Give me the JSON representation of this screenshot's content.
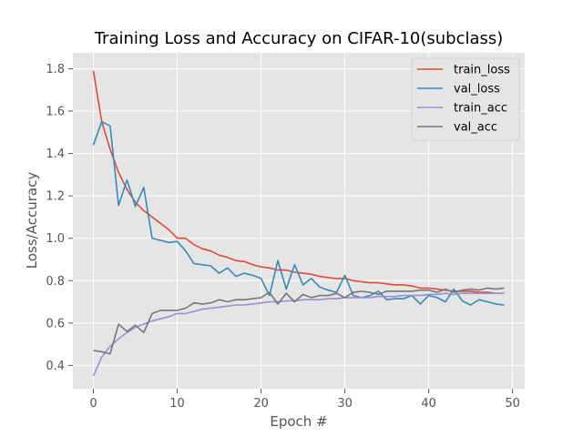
{
  "chart_data": {
    "type": "line",
    "title": "Training Loss and Accuracy on CIFAR-10(subclass)",
    "xlabel": "Epoch #",
    "ylabel": "Loss/Accuracy",
    "xlim": [
      -2.45,
      51.45
    ],
    "ylim": [
      0.29,
      1.875
    ],
    "xticks": [
      0,
      10,
      20,
      30,
      40,
      50
    ],
    "yticks": [
      0.4,
      0.6,
      0.8,
      1.0,
      1.2,
      1.4,
      1.6,
      1.8
    ],
    "grid": true,
    "legend_position": "top-right",
    "x": [
      0,
      1,
      2,
      3,
      4,
      5,
      6,
      7,
      8,
      9,
      10,
      11,
      12,
      13,
      14,
      15,
      16,
      17,
      18,
      19,
      20,
      21,
      22,
      23,
      24,
      25,
      26,
      27,
      28,
      29,
      30,
      31,
      32,
      33,
      34,
      35,
      36,
      37,
      38,
      39,
      40,
      41,
      42,
      43,
      44,
      45,
      46,
      47,
      48,
      49
    ],
    "series": [
      {
        "name": "train_loss",
        "color": "#e24a33",
        "values": [
          1.79,
          1.55,
          1.42,
          1.31,
          1.23,
          1.17,
          1.13,
          1.1,
          1.07,
          1.04,
          1.0,
          1.0,
          0.97,
          0.95,
          0.94,
          0.92,
          0.91,
          0.895,
          0.89,
          0.875,
          0.865,
          0.86,
          0.85,
          0.85,
          0.84,
          0.835,
          0.83,
          0.82,
          0.815,
          0.81,
          0.81,
          0.8,
          0.795,
          0.79,
          0.79,
          0.785,
          0.78,
          0.78,
          0.775,
          0.765,
          0.765,
          0.76,
          0.755,
          0.75,
          0.75,
          0.75,
          0.745,
          0.745,
          0.74,
          0.74
        ]
      },
      {
        "name": "val_loss",
        "color": "#348abd",
        "values": [
          1.44,
          1.55,
          1.53,
          1.155,
          1.275,
          1.15,
          1.24,
          1.0,
          0.99,
          0.98,
          0.985,
          0.94,
          0.88,
          0.875,
          0.87,
          0.835,
          0.86,
          0.82,
          0.835,
          0.825,
          0.81,
          0.73,
          0.895,
          0.76,
          0.875,
          0.78,
          0.81,
          0.77,
          0.755,
          0.745,
          0.825,
          0.73,
          0.72,
          0.73,
          0.75,
          0.71,
          0.715,
          0.715,
          0.73,
          0.69,
          0.73,
          0.72,
          0.7,
          0.76,
          0.705,
          0.685,
          0.71,
          0.7,
          0.69,
          0.685
        ]
      },
      {
        "name": "train_acc",
        "color": "#988ed5",
        "values": [
          0.35,
          0.44,
          0.49,
          0.525,
          0.555,
          0.58,
          0.595,
          0.61,
          0.62,
          0.63,
          0.645,
          0.645,
          0.655,
          0.665,
          0.67,
          0.675,
          0.68,
          0.685,
          0.685,
          0.69,
          0.695,
          0.7,
          0.7,
          0.705,
          0.705,
          0.71,
          0.71,
          0.71,
          0.715,
          0.715,
          0.72,
          0.72,
          0.72,
          0.72,
          0.725,
          0.725,
          0.725,
          0.73,
          0.73,
          0.73,
          0.735,
          0.735,
          0.74,
          0.735,
          0.74,
          0.74,
          0.74,
          0.74,
          0.74,
          0.74
        ]
      },
      {
        "name": "val_acc",
        "color": "#777777",
        "values": [
          0.47,
          0.465,
          0.455,
          0.595,
          0.56,
          0.59,
          0.555,
          0.645,
          0.66,
          0.66,
          0.66,
          0.67,
          0.695,
          0.69,
          0.695,
          0.71,
          0.7,
          0.71,
          0.71,
          0.715,
          0.72,
          0.745,
          0.69,
          0.74,
          0.7,
          0.735,
          0.72,
          0.73,
          0.73,
          0.74,
          0.72,
          0.745,
          0.75,
          0.745,
          0.735,
          0.75,
          0.75,
          0.75,
          0.75,
          0.755,
          0.755,
          0.745,
          0.76,
          0.745,
          0.755,
          0.76,
          0.755,
          0.765,
          0.76,
          0.765
        ]
      }
    ]
  }
}
